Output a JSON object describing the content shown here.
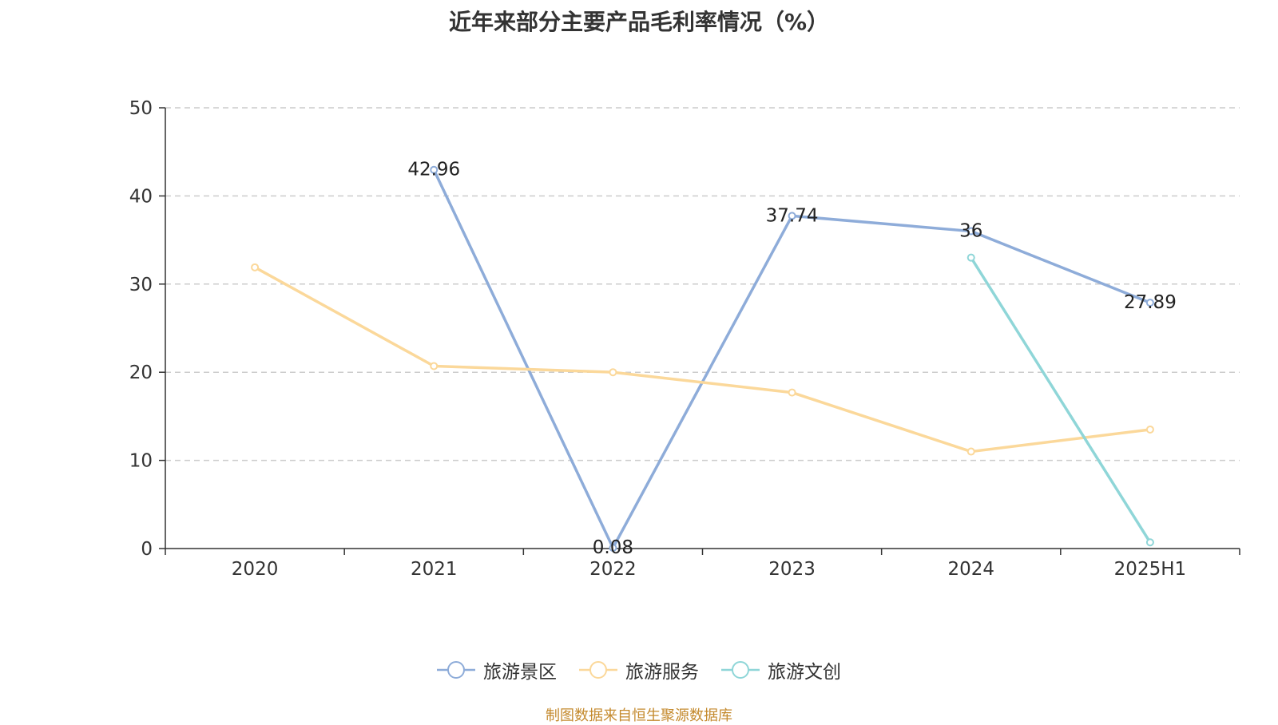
{
  "chart_data": {
    "type": "line",
    "title": "近年来部分主要产品毛利率情况（%）",
    "xlabel": "",
    "ylabel": "",
    "categories": [
      "2020",
      "2021",
      "2022",
      "2023",
      "2024",
      "2025H1"
    ],
    "ylim": [
      0,
      50
    ],
    "yticks": [
      "0",
      "10",
      "20",
      "30",
      "40",
      "50"
    ],
    "grid": true,
    "legend_position": "bottom",
    "series": [
      {
        "name": "旅游景区",
        "color": "#8eacd9",
        "values": [
          null,
          42.96,
          0.08,
          37.74,
          36,
          27.89
        ],
        "labels": [
          "",
          "42.96",
          "0.08",
          "37.74",
          "36",
          "27.89"
        ]
      },
      {
        "name": "旅游服务",
        "color": "#fbd89a",
        "values": [
          31.9,
          20.7,
          20.0,
          17.7,
          11.0,
          13.5
        ],
        "labels": [
          "",
          "",
          "",
          "",
          "",
          ""
        ]
      },
      {
        "name": "旅游文创",
        "color": "#8fd6d8",
        "values": [
          null,
          null,
          null,
          null,
          33.0,
          0.7
        ],
        "labels": [
          "",
          "",
          "",
          "",
          "",
          ""
        ]
      }
    ]
  },
  "source_note": "制图数据来自恒生聚源数据库"
}
